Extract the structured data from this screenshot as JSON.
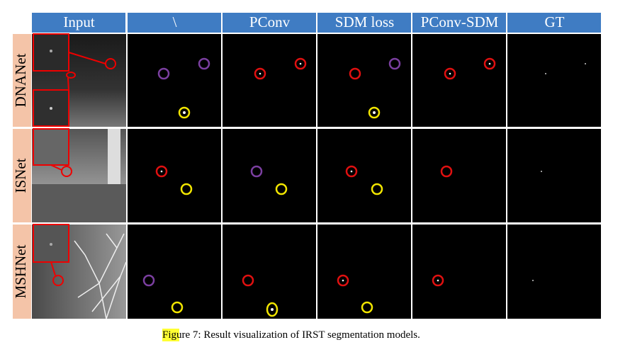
{
  "figure": {
    "columns": [
      "Input",
      "\\",
      "PConv",
      "SDM loss",
      "PConv-SDM",
      "GT"
    ],
    "rows": [
      "DNANet",
      "ISNet",
      "MSHNet"
    ],
    "caption": {
      "highlighted": "Fig",
      "rest": "ure 7: Result visualization of IRST segmentation models."
    }
  }
}
